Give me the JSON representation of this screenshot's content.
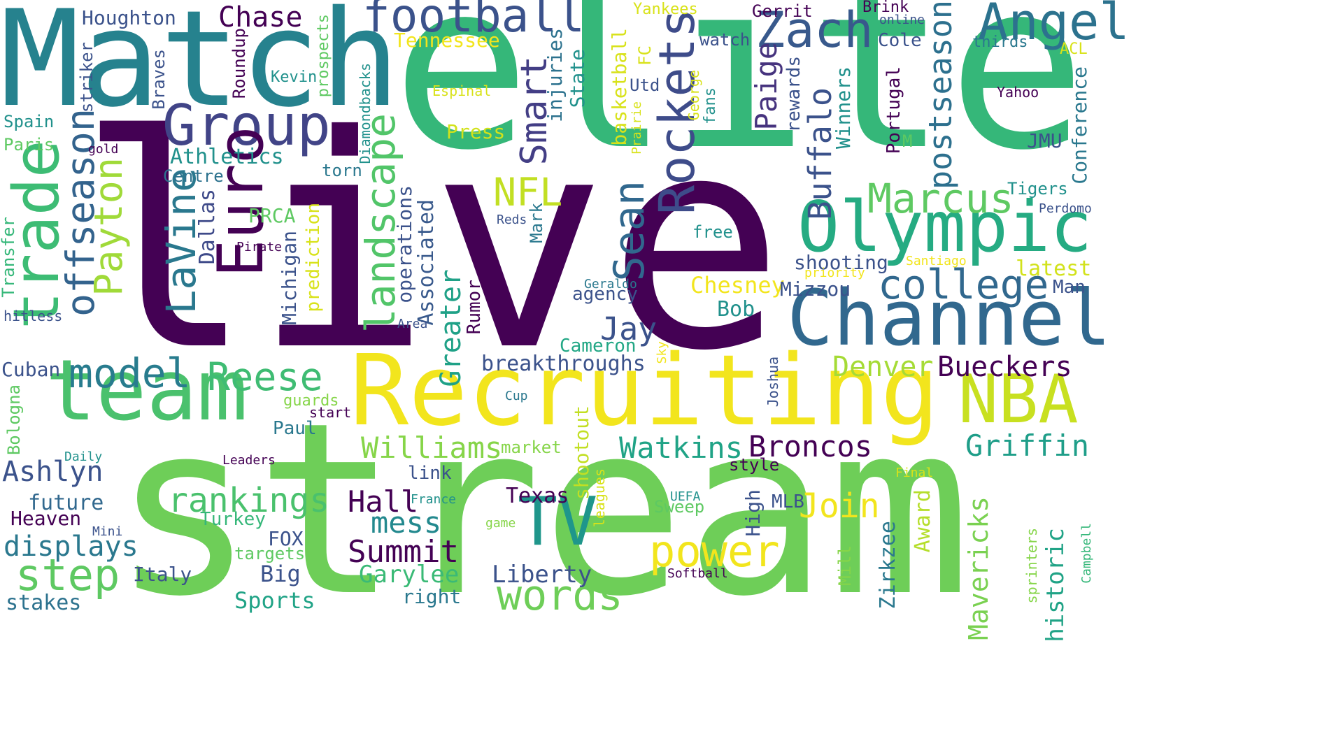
{
  "palette": {
    "purple": "#440154",
    "indigo": "#3b528b",
    "blue": "#31688e",
    "teal": "#21918c",
    "green": "#35b779",
    "lime": "#6ece58",
    "yellowgreen": "#b5de2b",
    "yellow": "#f2e51d"
  },
  "words": [
    {
      "text": "live",
      "color": "#440154"
    },
    {
      "text": "elite",
      "color": "#35b779"
    },
    {
      "text": "stream",
      "color": "#6ece58"
    },
    {
      "text": "Match",
      "color": "#26828e"
    },
    {
      "text": "Recruiting",
      "color": "#f2e51d"
    },
    {
      "text": "team",
      "color": "#4ac16d"
    },
    {
      "text": "Channel",
      "color": "#31688e"
    },
    {
      "text": "Olympic",
      "color": "#25ab82"
    },
    {
      "text": "trade",
      "color": "#3dbc74"
    },
    {
      "text": "NBA",
      "color": "#c8e020"
    },
    {
      "text": "Group",
      "color": "#414487"
    },
    {
      "text": "Euro",
      "color": "#440154"
    },
    {
      "text": "TV",
      "color": "#1f968b"
    },
    {
      "text": "football",
      "color": "#3b528b"
    },
    {
      "text": "Angel",
      "color": "#2c728e"
    },
    {
      "text": "Zach",
      "color": "#38598c"
    },
    {
      "text": "Rockets",
      "color": "#3e4c8a"
    },
    {
      "text": "college",
      "color": "#31688e"
    },
    {
      "text": "landscape",
      "color": "#52c569"
    },
    {
      "text": "offseason",
      "color": "#33638d"
    },
    {
      "text": "Payton",
      "color": "#a0da39"
    },
    {
      "text": "LaVine",
      "color": "#2a788e"
    },
    {
      "text": "Marcus",
      "color": "#5ec962"
    },
    {
      "text": "power",
      "color": "#f2e51d"
    },
    {
      "text": "words",
      "color": "#6ece58"
    },
    {
      "text": "Sean",
      "color": "#31688e"
    },
    {
      "text": "Smart",
      "color": "#433e85"
    },
    {
      "text": "postseason",
      "color": "#2d708e"
    },
    {
      "text": "Buffalo",
      "color": "#3b528b"
    },
    {
      "text": "model",
      "color": "#287c8e"
    },
    {
      "text": "Reese",
      "color": "#3fbc73"
    },
    {
      "text": "NFL",
      "color": "#c2df23"
    },
    {
      "text": "Paige",
      "color": "#46337e"
    },
    {
      "text": "step",
      "color": "#5ec962"
    },
    {
      "text": "rankings",
      "color": "#4ac16d"
    },
    {
      "text": "Summit",
      "color": "#440154"
    },
    {
      "text": "Join",
      "color": "#f2e51d"
    },
    {
      "text": "Mavericks",
      "color": "#7ad151"
    },
    {
      "text": "Broncos",
      "color": "#440154"
    },
    {
      "text": "Watkins",
      "color": "#20a386"
    },
    {
      "text": "Williams",
      "color": "#86d549"
    },
    {
      "text": "Griffin",
      "color": "#1f9e89"
    },
    {
      "text": "Bueckers",
      "color": "#440154"
    },
    {
      "text": "Denver",
      "color": "#a5db36"
    },
    {
      "text": "Jay",
      "color": "#3b528b"
    },
    {
      "text": "Chase",
      "color": "#440154"
    },
    {
      "text": "Ashlyn",
      "color": "#3b528b"
    },
    {
      "text": "displays",
      "color": "#2a788e"
    },
    {
      "text": "Hall",
      "color": "#440154"
    },
    {
      "text": "mess",
      "color": "#23898e"
    },
    {
      "text": "Garylee",
      "color": "#3aba76"
    },
    {
      "text": "Liberty",
      "color": "#3b528b"
    },
    {
      "text": "historic",
      "color": "#20a386"
    },
    {
      "text": "Chesney",
      "color": "#f2e51d"
    },
    {
      "text": "breakthroughs",
      "color": "#3b528b"
    },
    {
      "text": "Texas",
      "color": "#440154"
    },
    {
      "text": "Award",
      "color": "#b5de2b"
    },
    {
      "text": "Zirkzee",
      "color": "#2a788e"
    },
    {
      "text": "Athletics",
      "color": "#21918c"
    },
    {
      "text": "Michigan",
      "color": "#3b528b"
    },
    {
      "text": "Greater",
      "color": "#1fa187"
    },
    {
      "text": "Associated",
      "color": "#38598c"
    },
    {
      "text": "shootout",
      "color": "#c2df23"
    },
    {
      "text": "Dallas",
      "color": "#3e4a89"
    },
    {
      "text": "Big",
      "color": "#3b528b"
    },
    {
      "text": "Sports",
      "color": "#20a386"
    },
    {
      "text": "Cameron",
      "color": "#22a785"
    },
    {
      "text": "latest",
      "color": "#d2e21b"
    },
    {
      "text": "Mizzou",
      "color": "#3b528b"
    },
    {
      "text": "shooting",
      "color": "#3b528b"
    },
    {
      "text": "Bob",
      "color": "#21918c"
    },
    {
      "text": "Heaven",
      "color": "#440154"
    },
    {
      "text": "stakes",
      "color": "#2c728e"
    },
    {
      "text": "future",
      "color": "#31688e"
    },
    {
      "text": "Italy",
      "color": "#3b528b"
    },
    {
      "text": "right",
      "color": "#2a788e"
    },
    {
      "text": "FOX",
      "color": "#3b528b"
    },
    {
      "text": "High",
      "color": "#3b528b"
    },
    {
      "text": "MLB",
      "color": "#3b528b"
    },
    {
      "text": "Houghton",
      "color": "#3b528b"
    },
    {
      "text": "Tennessee",
      "color": "#f2e51d"
    },
    {
      "text": "Press",
      "color": "#d2e21b"
    },
    {
      "text": "injuries",
      "color": "#2c728e"
    },
    {
      "text": "State",
      "color": "#21918c"
    },
    {
      "text": "basketball",
      "color": "#d8e219"
    },
    {
      "text": "FC",
      "color": "#d8e219"
    },
    {
      "text": "Utd",
      "color": "#3b528b"
    },
    {
      "text": "Winners",
      "color": "#21918c"
    },
    {
      "text": "Portugal",
      "color": "#440154"
    },
    {
      "text": "rewards",
      "color": "#3b528b"
    },
    {
      "text": "Cole",
      "color": "#3b528b"
    },
    {
      "text": "Conference",
      "color": "#2a788e"
    },
    {
      "text": "JMU",
      "color": "#3b528b"
    },
    {
      "text": "Tigers",
      "color": "#21918c"
    },
    {
      "text": "Man",
      "color": "#3b528b"
    },
    {
      "text": "operations",
      "color": "#3b528b"
    },
    {
      "text": "prediction",
      "color": "#d8e219"
    },
    {
      "text": "Rumor",
      "color": "#440154"
    },
    {
      "text": "agency",
      "color": "#3b528b"
    },
    {
      "text": "PRCA",
      "color": "#5ec962"
    },
    {
      "text": "Transfer",
      "color": "#35b779"
    },
    {
      "text": "Cuban",
      "color": "#3b528b"
    },
    {
      "text": "Bologna",
      "color": "#5ec962"
    },
    {
      "text": "torn",
      "color": "#2a788e"
    },
    {
      "text": "Centre",
      "color": "#2c728e"
    },
    {
      "text": "free",
      "color": "#21918c"
    },
    {
      "text": "Mark",
      "color": "#2a788e"
    },
    {
      "text": "Spain",
      "color": "#21918c"
    },
    {
      "text": "Paris",
      "color": "#5ec962"
    },
    {
      "text": "striker",
      "color": "#3b528b"
    },
    {
      "text": "Braves",
      "color": "#3b528b"
    },
    {
      "text": "Kevin",
      "color": "#21918c"
    },
    {
      "text": "Roundup",
      "color": "#440154"
    },
    {
      "text": "prospects",
      "color": "#5ec962"
    },
    {
      "text": "Diamondbacks",
      "color": "#21918c"
    },
    {
      "text": "watch",
      "color": "#3b528b"
    },
    {
      "text": "Gerrit",
      "color": "#440154"
    },
    {
      "text": "Brink",
      "color": "#440154"
    },
    {
      "text": "online",
      "color": "#3b528b"
    },
    {
      "text": "thirds",
      "color": "#2a788e"
    },
    {
      "text": "ACL",
      "color": "#d8e219"
    },
    {
      "text": "Yankees",
      "color": "#d8e219"
    },
    {
      "text": "Espinal",
      "color": "#d8e219"
    },
    {
      "text": "Yahoo",
      "color": "#440154"
    },
    {
      "text": "George",
      "color": "#d8e219"
    },
    {
      "text": "fans",
      "color": "#21918c"
    },
    {
      "text": "Prairie",
      "color": "#d8e219"
    },
    {
      "text": "M",
      "color": "#5ec962"
    },
    {
      "text": "gold",
      "color": "#440154"
    },
    {
      "text": "Reds",
      "color": "#3b528b"
    },
    {
      "text": "Pirate",
      "color": "#440154"
    },
    {
      "text": "priority",
      "color": "#f2e51d"
    },
    {
      "text": "Santiago",
      "color": "#f2e51d"
    },
    {
      "text": "Perdomo",
      "color": "#3b528b"
    },
    {
      "text": "Geraldo",
      "color": "#2a788e"
    },
    {
      "text": "Area",
      "color": "#3b528b"
    },
    {
      "text": "hitless",
      "color": "#3b528b"
    },
    {
      "text": "guards",
      "color": "#86d549"
    },
    {
      "text": "start",
      "color": "#440154"
    },
    {
      "text": "Paul",
      "color": "#2a788e"
    },
    {
      "text": "Daily",
      "color": "#21918c"
    },
    {
      "text": "Leaders",
      "color": "#440154"
    },
    {
      "text": "link",
      "color": "#3b528b"
    },
    {
      "text": "market",
      "color": "#86d549"
    },
    {
      "text": "Cup",
      "color": "#2a788e"
    },
    {
      "text": "Sky",
      "color": "#f2e51d"
    },
    {
      "text": "Joshua",
      "color": "#3b528b"
    },
    {
      "text": "leagues",
      "color": "#d8e219"
    },
    {
      "text": "style",
      "color": "#440154"
    },
    {
      "text": "Final",
      "color": "#d8e219"
    },
    {
      "text": "UEFA",
      "color": "#21918c"
    },
    {
      "text": "Sweep",
      "color": "#5ec962"
    },
    {
      "text": "France",
      "color": "#21918c"
    },
    {
      "text": "Turkey",
      "color": "#35b779"
    },
    {
      "text": "game",
      "color": "#86d549"
    },
    {
      "text": "Mini",
      "color": "#3b528b"
    },
    {
      "text": "targets",
      "color": "#5ec962"
    },
    {
      "text": "Softball",
      "color": "#440154"
    },
    {
      "text": "Mill",
      "color": "#86d549"
    },
    {
      "text": "sprinters",
      "color": "#86d549"
    },
    {
      "text": "Campbell",
      "color": "#35b779"
    },
    {
      "text": "Eu",
      "color": "#440154"
    }
  ]
}
